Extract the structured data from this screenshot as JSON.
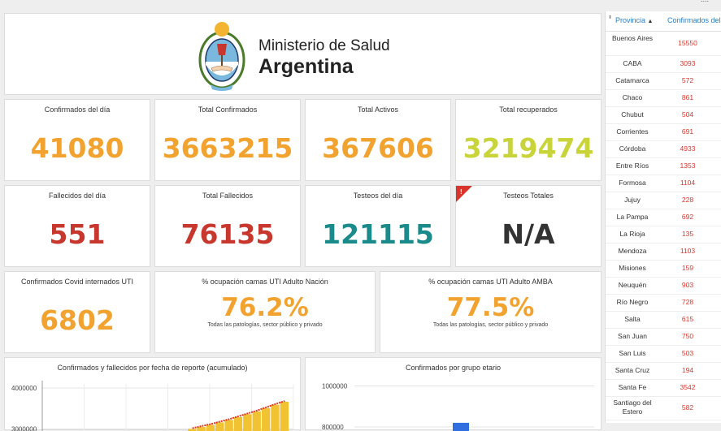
{
  "header": {
    "ministry_line1": "Ministerio de Salud",
    "ministry_line2": "Argentina",
    "top_right_fragment": "...."
  },
  "colors": {
    "orange": "#f2a32f",
    "red": "#c8372d",
    "teal": "#1a8a8a",
    "lime": "#c8d43a",
    "dark": "#333333",
    "link": "#2a7fc7",
    "bar_yellow": "#f1c232",
    "line_red": "#e0392a",
    "bar_blue": "#2f6fe0"
  },
  "kpis": {
    "confirmados_dia": {
      "label": "Confirmados del día",
      "value": "41080"
    },
    "total_confirmados": {
      "label": "Total Confirmados",
      "value": "3663215"
    },
    "total_activos": {
      "label": "Total Activos",
      "value": "367606"
    },
    "total_recuperados": {
      "label": "Total recuperados",
      "value": "3219474"
    },
    "fallecidos_dia": {
      "label": "Fallecidos del día",
      "value": "551"
    },
    "total_fallecidos": {
      "label": "Total Fallecidos",
      "value": "76135"
    },
    "testeos_dia": {
      "label": "Testeos del día",
      "value": "121115"
    },
    "testeos_totales": {
      "label": "Testeos Totales",
      "value": "N/A",
      "badge": "!"
    },
    "internados_uti": {
      "label": "Confirmados Covid internados UTI",
      "value": "6802"
    },
    "ocupacion_nacion": {
      "label": "% ocupación camas UTI Adulto Nación",
      "value": "76.2%",
      "sub": "Todas las patologías, sector público y privado"
    },
    "ocupacion_amba": {
      "label": "% ocupación camas UTI Adulto AMBA",
      "value": "77.5%",
      "sub": "Todas las patologías, sector público y privado"
    }
  },
  "chart_data": [
    {
      "type": "bar",
      "title": "Confirmados y fallecidos por fecha de reporte (acumulado)",
      "yticks": [
        "4000000",
        "3000000"
      ],
      "ylim": [
        2950000,
        4100000
      ],
      "grid": true,
      "series": [
        {
          "type": "bar",
          "values": [
            3000000,
            3050000,
            3100000,
            3160000,
            3220000,
            3290000,
            3360000,
            3430000,
            3510000,
            3590000,
            3663215
          ]
        },
        {
          "type": "line",
          "values": [
            3000000,
            3050000,
            3100000,
            3160000,
            3220000,
            3290000,
            3360000,
            3430000,
            3510000,
            3590000,
            3663215
          ]
        }
      ]
    },
    {
      "type": "bar",
      "title": "Confirmados por grupo etario",
      "yticks": [
        "1000000",
        "800000"
      ],
      "ylim": [
        780000,
        1010000
      ],
      "grid": true,
      "values": [
        820000
      ]
    }
  ],
  "table": {
    "headers": {
      "provincia": "Provincia",
      "confirmados": "Confirmados del"
    },
    "rows": [
      {
        "provincia": "Buenos Aires",
        "confirmados": "15550"
      },
      {
        "provincia": "CABA",
        "confirmados": "3093"
      },
      {
        "provincia": "Catamarca",
        "confirmados": "572"
      },
      {
        "provincia": "Chaco",
        "confirmados": "861"
      },
      {
        "provincia": "Chubut",
        "confirmados": "504"
      },
      {
        "provincia": "Corrientes",
        "confirmados": "691"
      },
      {
        "provincia": "Córdoba",
        "confirmados": "4933"
      },
      {
        "provincia": "Entre Ríos",
        "confirmados": "1353"
      },
      {
        "provincia": "Formosa",
        "confirmados": "1104"
      },
      {
        "provincia": "Jujuy",
        "confirmados": "228"
      },
      {
        "provincia": "La Pampa",
        "confirmados": "692"
      },
      {
        "provincia": "La Rioja",
        "confirmados": "135"
      },
      {
        "provincia": "Mendoza",
        "confirmados": "1103"
      },
      {
        "provincia": "Misiones",
        "confirmados": "159"
      },
      {
        "provincia": "Neuquén",
        "confirmados": "903"
      },
      {
        "provincia": "Río Negro",
        "confirmados": "728"
      },
      {
        "provincia": "Salta",
        "confirmados": "615"
      },
      {
        "provincia": "San Juan",
        "confirmados": "750"
      },
      {
        "provincia": "San Luis",
        "confirmados": "503"
      },
      {
        "provincia": "Santa Cruz",
        "confirmados": "194"
      },
      {
        "provincia": "Santa Fe",
        "confirmados": "3542"
      },
      {
        "provincia": "Santiago del Estero",
        "confirmados": "582"
      }
    ]
  }
}
